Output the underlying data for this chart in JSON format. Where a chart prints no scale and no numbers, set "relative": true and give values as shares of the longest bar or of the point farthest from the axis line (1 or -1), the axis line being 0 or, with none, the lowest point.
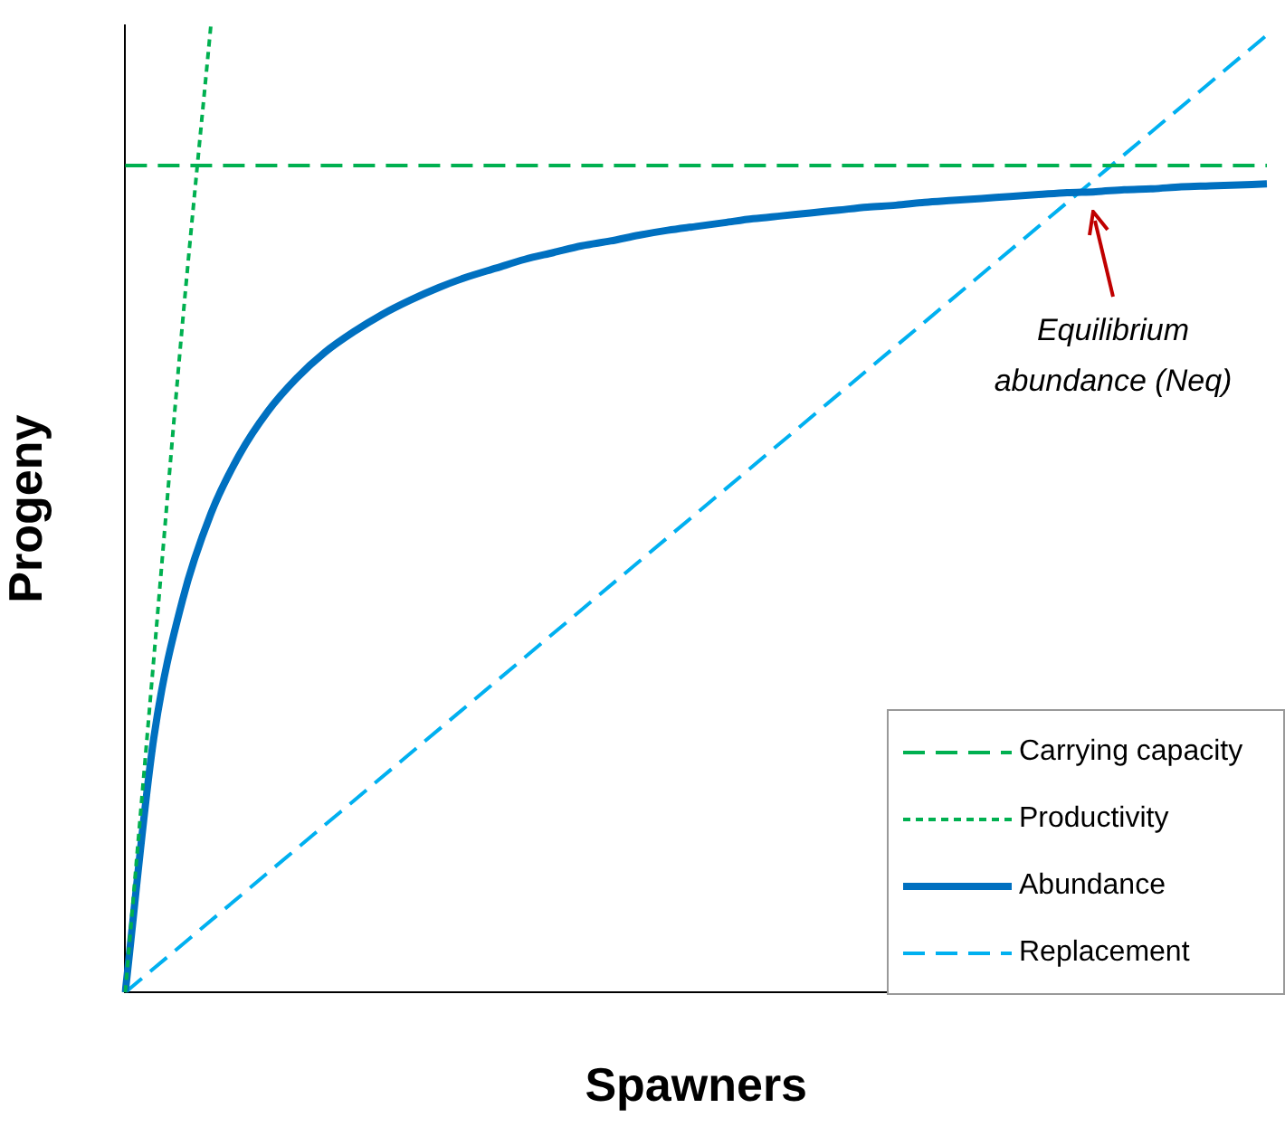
{
  "chart_data": {
    "type": "line",
    "relative": true,
    "xlabel": "Spawners",
    "ylabel": "Progeny",
    "legend": "bottom right",
    "marker": "none",
    "grid": false,
    "categories": [
      null,
      null,
      null,
      null,
      null,
      null,
      null,
      null,
      null,
      null,
      null,
      null,
      null,
      null,
      null,
      null,
      null,
      null,
      null,
      null,
      null,
      null,
      null,
      null,
      null,
      null,
      null,
      null,
      null,
      null,
      null,
      null,
      null,
      null,
      null,
      null,
      null,
      null,
      null,
      null,
      null
    ],
    "series": [
      {
        "name": "Carrying capacity",
        "color": "#00b050",
        "line_style": "dashed",
        "values": [
          0.855,
          null,
          null,
          null,
          null,
          null,
          null,
          null,
          null,
          null,
          null,
          null,
          null,
          null,
          null,
          null,
          null,
          null,
          null,
          null,
          null,
          null,
          null,
          null,
          null,
          null,
          null,
          null,
          null,
          null,
          null,
          null,
          null,
          null,
          null,
          null,
          null,
          null,
          null,
          null,
          0.855
        ]
      },
      {
        "name": "Productivity",
        "color": "#00b050",
        "line_style": "dotted",
        "values": [
          0,
          0.345,
          0.69,
          1,
          null,
          null,
          null,
          null,
          null,
          null,
          null,
          null,
          null,
          null,
          null,
          null,
          null,
          null,
          null,
          null,
          null,
          null,
          null,
          null,
          null,
          null,
          null,
          null,
          null,
          null,
          null,
          null,
          null,
          null,
          null,
          null,
          null,
          null,
          null,
          null,
          null
        ]
      },
      {
        "name": "Abundance",
        "color": "#0070c0",
        "line_style": "solid",
        "values": [
          0,
          0.263,
          0.405,
          0.495,
          0.556,
          0.601,
          0.635,
          0.662,
          0.683,
          0.701,
          0.716,
          0.729,
          0.74,
          0.749,
          0.758,
          0.765,
          0.772,
          0.777,
          0.783,
          0.788,
          0.792,
          0.796,
          0.8,
          0.803,
          0.806,
          0.809,
          0.812,
          0.814,
          0.817,
          0.819,
          0.821,
          0.823,
          0.825,
          0.827,
          0.828,
          0.83,
          0.831,
          0.833,
          0.834,
          0.835,
          0.836
        ]
      },
      {
        "name": "Replacement",
        "color": "#00b0f0",
        "line_style": "dashed",
        "values": [
          0,
          null,
          null,
          null,
          null,
          null,
          null,
          null,
          null,
          null,
          null,
          null,
          null,
          null,
          null,
          null,
          null,
          null,
          null,
          null,
          null,
          null,
          null,
          null,
          null,
          null,
          null,
          null,
          null,
          null,
          null,
          null,
          null,
          null,
          null,
          null,
          null,
          null,
          null,
          null,
          0.99
        ]
      }
    ],
    "annotations": [
      "Equilibrium abundance (Neq)"
    ]
  }
}
